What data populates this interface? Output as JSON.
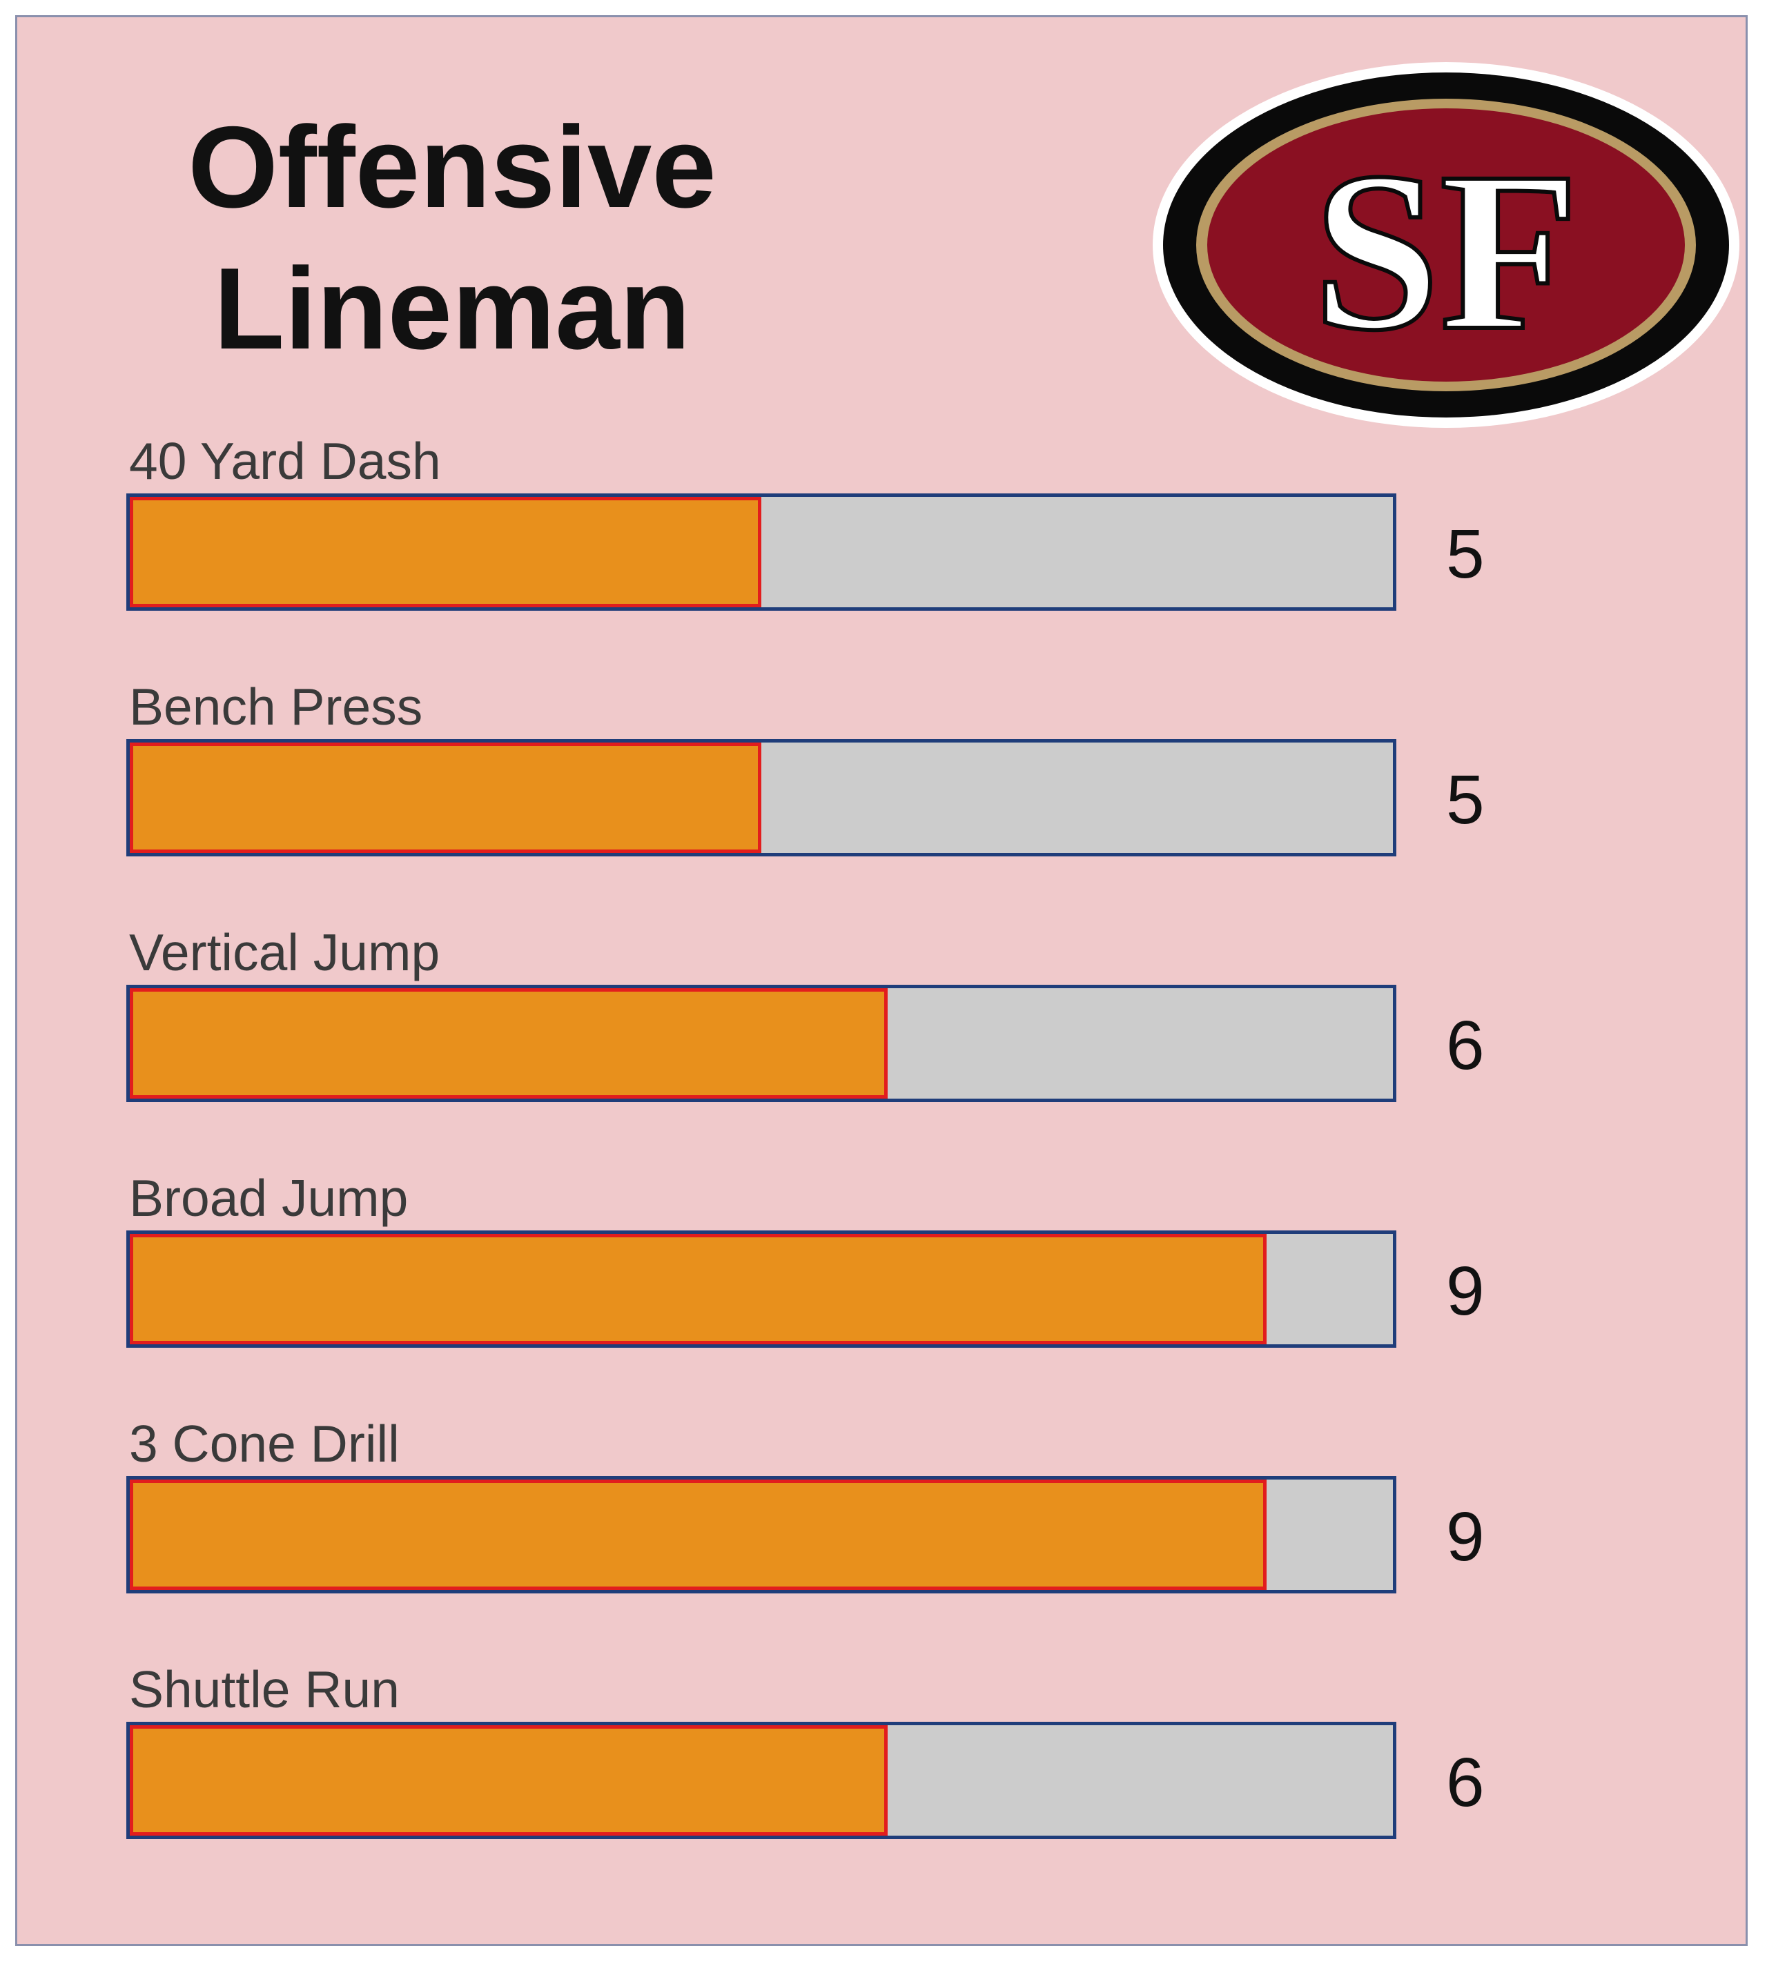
{
  "title": {
    "line1": "Offensive",
    "line2": "Lineman"
  },
  "logo": {
    "text": "SF",
    "icon": "sf-49ers-logo",
    "colors": {
      "outer": "#0a0a0a",
      "gold": "#b99b64",
      "red": "#8a1022",
      "letters": "#ffffff"
    }
  },
  "colors": {
    "panel_background": "#f0c9cb",
    "bar_fill": "#e8901c",
    "bar_fill_border": "#e21d1d",
    "bar_track": "#cccccc",
    "bar_track_border": "#1f3d7a"
  },
  "chart_data": {
    "type": "bar",
    "orientation": "horizontal",
    "categories": [
      "40 Yard Dash",
      "Bench Press",
      "Vertical Jump",
      "Broad Jump",
      "3 Cone Drill",
      "Shuttle Run"
    ],
    "values": [
      5,
      5,
      6,
      9,
      9,
      6
    ],
    "xlim": [
      0,
      10
    ],
    "grid": false,
    "legend": "none",
    "value_labels": [
      "5",
      "5",
      "6",
      "9",
      "9",
      "6"
    ]
  }
}
